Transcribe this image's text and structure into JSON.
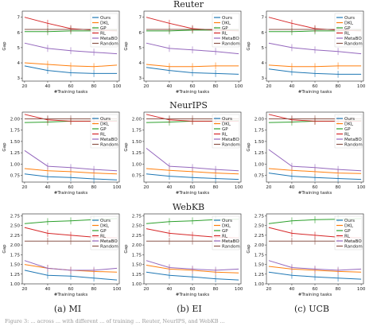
{
  "figure": {
    "row_titles": [
      "Reuter",
      "NeurIPS",
      "WebKB"
    ],
    "column_labels": [
      "(a) MI",
      "(b) EI",
      "(c) UCB"
    ],
    "caption_fragment": "Figure 3: ... across ... with different ... of training ... Reuter, NeurIPS, and WebKB ..."
  },
  "colors": {
    "Ours": "#1f77b4",
    "DKL": "#ff7f0e",
    "GP": "#2ca02c",
    "RL": "#d62728",
    "MetaBO": "#9467bd",
    "Random": "#8c564b"
  },
  "chart_data": [
    {
      "type": "line",
      "row": "Reuter",
      "column": "(a) MI",
      "x": [
        20,
        40,
        60,
        80,
        100
      ],
      "xlabel": "#Training tasks",
      "ylabel": "Gap",
      "xlim": [
        18,
        102
      ],
      "ylim": [
        2.8,
        7.4
      ],
      "yticks": [
        3,
        4,
        5,
        6,
        7
      ],
      "xticks": [
        20,
        40,
        60,
        80,
        100
      ],
      "grid": false,
      "legend_position": "top-right",
      "series": [
        {
          "name": "Ours",
          "values": [
            3.8,
            3.5,
            3.35,
            3.3,
            3.3
          ]
        },
        {
          "name": "DKL",
          "values": [
            4.0,
            3.9,
            3.8,
            3.75,
            3.85
          ]
        },
        {
          "name": "GP",
          "values": [
            6.05,
            6.05,
            6.1,
            6.1,
            6.15
          ]
        },
        {
          "name": "RL",
          "values": [
            7.0,
            6.6,
            6.25,
            6.15,
            6.1
          ]
        },
        {
          "name": "MetaBO",
          "values": [
            5.3,
            4.95,
            4.8,
            4.7,
            4.6
          ]
        },
        {
          "name": "Random",
          "values": [
            6.2,
            6.2,
            6.2,
            6.2,
            6.2
          ]
        }
      ]
    },
    {
      "type": "line",
      "row": "Reuter",
      "column": "(b) EI",
      "x": [
        20,
        40,
        60,
        80,
        100
      ],
      "xlabel": "#Training tasks",
      "ylabel": "Gap",
      "xlim": [
        18,
        102
      ],
      "ylim": [
        2.8,
        7.4
      ],
      "yticks": [
        3,
        4,
        5,
        6,
        7
      ],
      "xticks": [
        20,
        40,
        60,
        80,
        100
      ],
      "grid": false,
      "legend_position": "top-right",
      "series": [
        {
          "name": "Ours",
          "values": [
            3.7,
            3.5,
            3.35,
            3.3,
            3.25
          ]
        },
        {
          "name": "DKL",
          "values": [
            3.9,
            3.75,
            3.75,
            3.8,
            3.8
          ]
        },
        {
          "name": "GP",
          "values": [
            6.1,
            6.1,
            6.15,
            6.15,
            6.15
          ]
        },
        {
          "name": "RL",
          "values": [
            7.0,
            6.6,
            6.25,
            6.15,
            6.1
          ]
        },
        {
          "name": "MetaBO",
          "values": [
            5.3,
            4.95,
            4.85,
            4.75,
            4.6
          ]
        },
        {
          "name": "Random",
          "values": [
            6.2,
            6.2,
            6.2,
            6.2,
            6.2
          ]
        }
      ]
    },
    {
      "type": "line",
      "row": "Reuter",
      "column": "(c) UCB",
      "x": [
        20,
        40,
        60,
        80,
        100
      ],
      "xlabel": "#Training tasks",
      "ylabel": "Gap",
      "xlim": [
        18,
        102
      ],
      "ylim": [
        2.8,
        7.4
      ],
      "yticks": [
        3,
        4,
        5,
        6,
        7
      ],
      "xticks": [
        20,
        40,
        60,
        80,
        100
      ],
      "grid": false,
      "legend_position": "top-right",
      "series": [
        {
          "name": "Ours",
          "values": [
            3.6,
            3.4,
            3.3,
            3.25,
            3.25
          ]
        },
        {
          "name": "DKL",
          "values": [
            3.85,
            3.75,
            3.75,
            3.8,
            3.8
          ]
        },
        {
          "name": "GP",
          "values": [
            6.05,
            6.05,
            6.1,
            6.1,
            6.15
          ]
        },
        {
          "name": "RL",
          "values": [
            7.0,
            6.6,
            6.25,
            6.15,
            6.1
          ]
        },
        {
          "name": "MetaBO",
          "values": [
            5.3,
            5.0,
            4.85,
            4.75,
            4.6
          ]
        },
        {
          "name": "Random",
          "values": [
            6.2,
            6.2,
            6.2,
            6.2,
            6.2
          ]
        }
      ]
    },
    {
      "type": "line",
      "row": "NeurIPS",
      "column": "(a) MI",
      "x": [
        20,
        40,
        60,
        80,
        100
      ],
      "xlabel": "#Training tasks",
      "ylabel": "Gap",
      "xlim": [
        18,
        102
      ],
      "ylim": [
        0.6,
        2.15
      ],
      "yticks": [
        0.75,
        1.0,
        1.25,
        1.5,
        1.75,
        2.0
      ],
      "ytick_labels": [
        "0.75",
        "1.00",
        "1.25",
        "1.50",
        "1.75",
        "2.00"
      ],
      "xticks": [
        20,
        40,
        60,
        80,
        100
      ],
      "grid": false,
      "legend_position": "top-right",
      "series": [
        {
          "name": "Ours",
          "values": [
            0.78,
            0.72,
            0.7,
            0.67,
            0.65
          ]
        },
        {
          "name": "DKL",
          "values": [
            0.9,
            0.85,
            0.83,
            0.8,
            0.78
          ]
        },
        {
          "name": "GP",
          "values": [
            1.92,
            1.93,
            1.95,
            1.95,
            1.96
          ]
        },
        {
          "name": "RL",
          "values": [
            2.1,
            1.98,
            1.95,
            1.95,
            1.95
          ]
        },
        {
          "name": "MetaBO",
          "values": [
            1.3,
            0.95,
            0.92,
            0.88,
            0.85
          ]
        },
        {
          "name": "Random",
          "values": [
            2.0,
            2.0,
            2.0,
            2.0,
            2.0
          ]
        }
      ]
    },
    {
      "type": "line",
      "row": "NeurIPS",
      "column": "(b) EI",
      "x": [
        20,
        40,
        60,
        80,
        100
      ],
      "xlabel": "#Training tasks",
      "ylabel": "Gap",
      "xlim": [
        18,
        102
      ],
      "ylim": [
        0.6,
        2.15
      ],
      "yticks": [
        0.75,
        1.0,
        1.25,
        1.5,
        1.75,
        2.0
      ],
      "ytick_labels": [
        "0.75",
        "1.00",
        "1.25",
        "1.50",
        "1.75",
        "2.00"
      ],
      "xticks": [
        20,
        40,
        60,
        80,
        100
      ],
      "grid": false,
      "legend_position": "top-right",
      "series": [
        {
          "name": "Ours",
          "values": [
            0.78,
            0.73,
            0.7,
            0.68,
            0.66
          ]
        },
        {
          "name": "DKL",
          "values": [
            0.9,
            0.86,
            0.83,
            0.8,
            0.78
          ]
        },
        {
          "name": "GP",
          "values": [
            1.92,
            1.93,
            1.95,
            1.95,
            1.96
          ]
        },
        {
          "name": "RL",
          "values": [
            2.1,
            1.98,
            1.95,
            1.95,
            1.95
          ]
        },
        {
          "name": "MetaBO",
          "values": [
            1.35,
            0.95,
            0.92,
            0.88,
            0.85
          ]
        },
        {
          "name": "Random",
          "values": [
            2.0,
            2.0,
            2.0,
            2.0,
            2.0
          ]
        }
      ]
    },
    {
      "type": "line",
      "row": "NeurIPS",
      "column": "(c) UCB",
      "x": [
        20,
        40,
        60,
        80,
        100
      ],
      "xlabel": "#Training tasks",
      "ylabel": "Gap",
      "xlim": [
        18,
        102
      ],
      "ylim": [
        0.6,
        2.15
      ],
      "yticks": [
        0.75,
        1.0,
        1.25,
        1.5,
        1.75,
        2.0
      ],
      "ytick_labels": [
        "0.75",
        "1.00",
        "1.25",
        "1.50",
        "1.75",
        "2.00"
      ],
      "xticks": [
        20,
        40,
        60,
        80,
        100
      ],
      "grid": false,
      "legend_position": "top-right",
      "series": [
        {
          "name": "Ours",
          "values": [
            0.8,
            0.73,
            0.7,
            0.68,
            0.66
          ]
        },
        {
          "name": "DKL",
          "values": [
            0.9,
            0.86,
            0.83,
            0.8,
            0.79
          ]
        },
        {
          "name": "GP",
          "values": [
            1.92,
            1.93,
            1.95,
            1.95,
            1.96
          ]
        },
        {
          "name": "RL",
          "values": [
            2.1,
            1.98,
            1.95,
            1.95,
            1.95
          ]
        },
        {
          "name": "MetaBO",
          "values": [
            1.32,
            0.95,
            0.92,
            0.88,
            0.85
          ]
        },
        {
          "name": "Random",
          "values": [
            2.0,
            2.0,
            2.0,
            2.0,
            2.0
          ]
        }
      ]
    },
    {
      "type": "line",
      "row": "WebKB",
      "column": "(a) MI",
      "x": [
        20,
        40,
        60,
        80,
        100
      ],
      "xlabel": "#Training tasks",
      "ylabel": "Gap",
      "xlim": [
        18,
        102
      ],
      "ylim": [
        1.0,
        2.8
      ],
      "yticks": [
        1.0,
        1.25,
        1.5,
        1.75,
        2.0,
        2.25,
        2.5,
        2.75
      ],
      "ytick_labels": [
        "1.00",
        "1.25",
        "1.50",
        "1.75",
        "2.00",
        "2.25",
        "2.50",
        "2.75"
      ],
      "xticks": [
        20,
        40,
        60,
        80,
        100
      ],
      "grid": false,
      "legend_position": "top-right",
      "series": [
        {
          "name": "Ours",
          "values": [
            1.35,
            1.22,
            1.2,
            1.15,
            1.1
          ]
        },
        {
          "name": "DKL",
          "values": [
            1.5,
            1.4,
            1.35,
            1.32,
            1.3
          ]
        },
        {
          "name": "GP",
          "values": [
            2.55,
            2.6,
            2.62,
            2.65,
            2.68
          ]
        },
        {
          "name": "RL",
          "values": [
            2.45,
            2.3,
            2.25,
            2.2,
            2.18
          ]
        },
        {
          "name": "MetaBO",
          "values": [
            1.6,
            1.4,
            1.35,
            1.35,
            1.4
          ]
        },
        {
          "name": "Random",
          "values": [
            2.1,
            2.1,
            2.1,
            2.1,
            2.1
          ]
        }
      ]
    },
    {
      "type": "line",
      "row": "WebKB",
      "column": "(b) EI",
      "x": [
        20,
        40,
        60,
        80,
        100
      ],
      "xlabel": "#Training tasks",
      "ylabel": "Gap",
      "xlim": [
        18,
        102
      ],
      "ylim": [
        1.0,
        2.8
      ],
      "yticks": [
        1.0,
        1.25,
        1.5,
        1.75,
        2.0,
        2.25,
        2.5,
        2.75
      ],
      "ytick_labels": [
        "1.00",
        "1.25",
        "1.50",
        "1.75",
        "2.00",
        "2.25",
        "2.50",
        "2.75"
      ],
      "xticks": [
        20,
        40,
        60,
        80,
        100
      ],
      "grid": false,
      "legend_position": "top-right",
      "series": [
        {
          "name": "Ours",
          "values": [
            1.3,
            1.22,
            1.18,
            1.13,
            1.1
          ]
        },
        {
          "name": "DKL",
          "values": [
            1.48,
            1.38,
            1.35,
            1.3,
            1.28
          ]
        },
        {
          "name": "GP",
          "values": [
            2.55,
            2.6,
            2.62,
            2.65,
            2.66
          ]
        },
        {
          "name": "RL",
          "values": [
            2.42,
            2.3,
            2.25,
            2.2,
            2.18
          ]
        },
        {
          "name": "MetaBO",
          "values": [
            1.6,
            1.42,
            1.38,
            1.35,
            1.38
          ]
        },
        {
          "name": "Random",
          "values": [
            2.1,
            2.1,
            2.1,
            2.1,
            2.1
          ]
        }
      ]
    },
    {
      "type": "line",
      "row": "WebKB",
      "column": "(c) UCB",
      "x": [
        20,
        40,
        60,
        80,
        100
      ],
      "xlabel": "#Training tasks",
      "ylabel": "Gap",
      "xlim": [
        18,
        102
      ],
      "ylim": [
        1.0,
        2.8
      ],
      "yticks": [
        1.0,
        1.25,
        1.5,
        1.75,
        2.0,
        2.25,
        2.5,
        2.75
      ],
      "ytick_labels": [
        "1.00",
        "1.25",
        "1.50",
        "1.75",
        "2.00",
        "2.25",
        "2.50",
        "2.75"
      ],
      "xticks": [
        20,
        40,
        60,
        80,
        100
      ],
      "grid": false,
      "legend_position": "top-right",
      "series": [
        {
          "name": "Ours",
          "values": [
            1.3,
            1.22,
            1.18,
            1.15,
            1.12
          ]
        },
        {
          "name": "DKL",
          "values": [
            1.45,
            1.38,
            1.35,
            1.32,
            1.3
          ]
        },
        {
          "name": "GP",
          "values": [
            2.55,
            2.62,
            2.65,
            2.66,
            2.68
          ]
        },
        {
          "name": "RL",
          "values": [
            2.45,
            2.3,
            2.25,
            2.2,
            2.18
          ]
        },
        {
          "name": "MetaBO",
          "values": [
            1.6,
            1.42,
            1.38,
            1.35,
            1.38
          ]
        },
        {
          "name": "Random",
          "values": [
            2.1,
            2.1,
            2.1,
            2.1,
            2.1
          ]
        }
      ]
    }
  ]
}
